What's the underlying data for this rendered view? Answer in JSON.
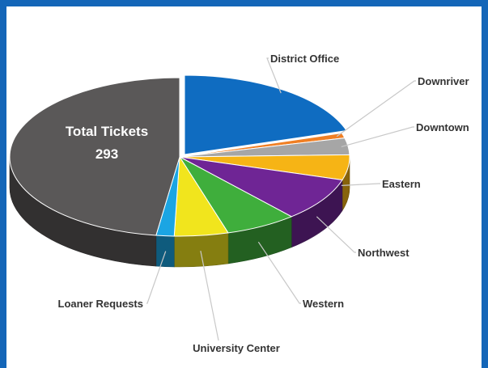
{
  "chart_data": {
    "type": "pie",
    "style": "3d-exploded-first-slice",
    "annotation": {
      "line1": "Total Tickets",
      "line2": "293"
    },
    "slices": [
      {
        "label": "District Office",
        "value": 59,
        "color": "#0f6cc1"
      },
      {
        "label": "Downriver",
        "value": 3,
        "color": "#f07f24"
      },
      {
        "label": "Downtown",
        "value": 10,
        "color": "#a6a6a6"
      },
      {
        "label": "Eastern",
        "value": 15,
        "color": "#f6b415"
      },
      {
        "label": "Northwest",
        "value": 26,
        "color": "#6f2595"
      },
      {
        "label": "Western",
        "value": 20,
        "color": "#3fae3c"
      },
      {
        "label": "University Center",
        "value": 15,
        "color": "#f1e51d"
      },
      {
        "label": "Loaner Requests",
        "value": 5,
        "color": "#1ba5e3"
      },
      {
        "label": "",
        "value": 140,
        "color": "#5a5858"
      }
    ],
    "legend": "none",
    "leader_lines": true
  }
}
